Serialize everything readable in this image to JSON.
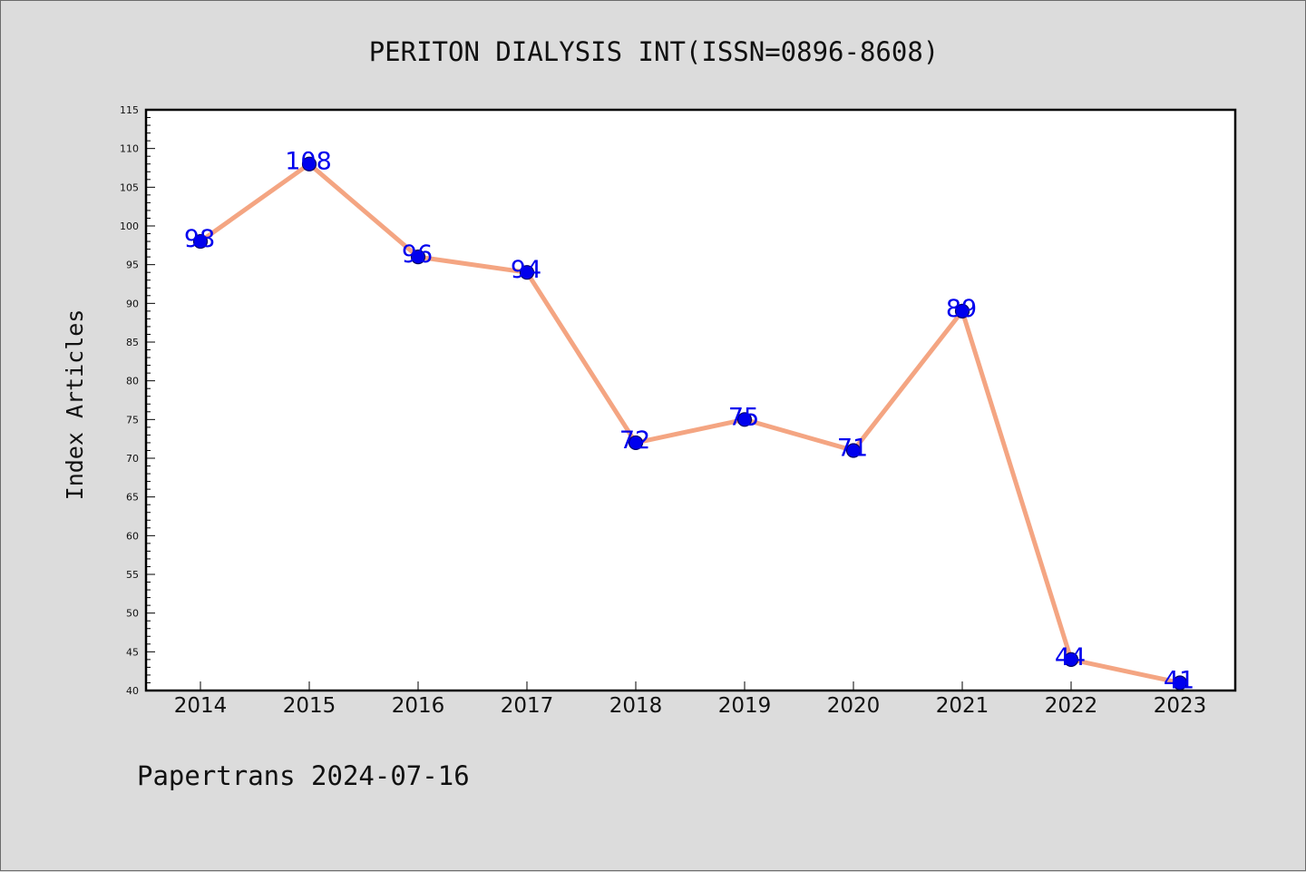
{
  "chart_data": {
    "type": "line",
    "title": "PERITON DIALYSIS INT(ISSN=0896-8608)",
    "xlabel": "",
    "ylabel": "Index Articles",
    "categories": [
      "2014",
      "2015",
      "2016",
      "2017",
      "2018",
      "2019",
      "2020",
      "2021",
      "2022",
      "2023"
    ],
    "series": [
      {
        "values": [
          98,
          108,
          96,
          94,
          72,
          75,
          71,
          89,
          44,
          41
        ]
      }
    ],
    "ylim": [
      40,
      115
    ],
    "yticks": [
      "40",
      "45",
      "50",
      "55",
      "60",
      "65",
      "70",
      "75",
      "80",
      "85",
      "90",
      "95",
      "100",
      "105",
      "110",
      "115"
    ],
    "data_labels": [
      "98",
      "108",
      "96",
      "94",
      "72",
      "75",
      "71",
      "89",
      "44",
      "41"
    ],
    "grid": false,
    "legend": "none",
    "colors": {
      "line": "#f4a582",
      "marker": "#0000ee",
      "marker_edge": "#000066",
      "data_label": "#0000ee",
      "plot_bg": "#ffffff",
      "page_bg": "#dcdcdc"
    }
  },
  "footer": {
    "text": "Papertrans 2024-07-16"
  }
}
